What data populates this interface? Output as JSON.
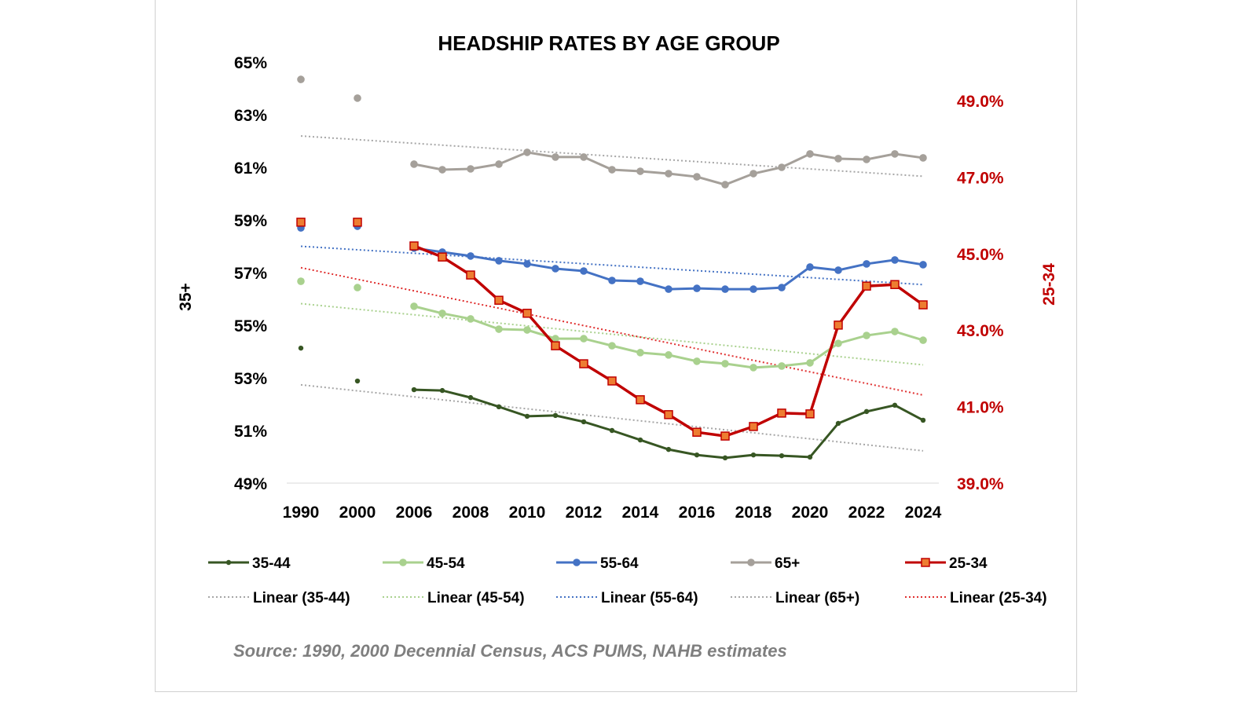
{
  "chart_data": {
    "type": "line",
    "title": "HEADSHIP RATES BY AGE GROUP",
    "y_left_label": "35+",
    "y_right_label": "25-34",
    "y_left_ticks": [
      "65%",
      "63%",
      "61%",
      "59%",
      "57%",
      "55%",
      "53%",
      "51%",
      "49%"
    ],
    "y_right_ticks": [
      "49.0%",
      "47.0%",
      "45.0%",
      "43.0%",
      "41.0%",
      "39.0%"
    ],
    "ylim_left": [
      49,
      65
    ],
    "ylim_right": [
      39,
      50
    ],
    "x_tick_labels": [
      "1990",
      "2000",
      "2006",
      "2008",
      "2010",
      "2012",
      "2014",
      "2016",
      "2018",
      "2020",
      "2022",
      "2024"
    ],
    "x": [
      1990,
      2000,
      2006,
      2007,
      2008,
      2009,
      2010,
      2011,
      2012,
      2013,
      2014,
      2015,
      2016,
      2017,
      2018,
      2019,
      2020,
      2021,
      2022,
      2023,
      2024
    ],
    "grid": false,
    "legend_position": "bottom",
    "series": [
      {
        "name": "35-44",
        "axis": "left",
        "color": "#375623",
        "marker": "small-circle",
        "values": [
          54.13,
          52.88,
          52.55,
          52.52,
          52.25,
          51.9,
          51.54,
          51.57,
          51.33,
          51.0,
          50.64,
          50.28,
          50.07,
          49.96,
          50.07,
          50.04,
          49.99,
          51.27,
          51.72,
          51.96,
          51.39
        ]
      },
      {
        "name": "45-54",
        "axis": "left",
        "color": "#a9d18e",
        "marker": "circle",
        "values": [
          56.67,
          56.43,
          55.72,
          55.45,
          55.24,
          54.85,
          54.82,
          54.49,
          54.49,
          54.22,
          53.96,
          53.87,
          53.63,
          53.54,
          53.39,
          53.45,
          53.57,
          54.31,
          54.61,
          54.76,
          54.43
        ]
      },
      {
        "name": "55-64",
        "axis": "left",
        "color": "#4472c4",
        "marker": "circle",
        "values": [
          58.7,
          58.76,
          57.93,
          57.78,
          57.63,
          57.45,
          57.33,
          57.15,
          57.06,
          56.7,
          56.67,
          56.37,
          56.4,
          56.37,
          56.37,
          56.43,
          57.21,
          57.09,
          57.33,
          57.48,
          57.3
        ]
      },
      {
        "name": "65+",
        "axis": "left",
        "color": "#a5a09a",
        "marker": "circle",
        "values": [
          64.34,
          63.63,
          61.12,
          60.91,
          60.94,
          61.12,
          61.57,
          61.39,
          61.39,
          60.91,
          60.85,
          60.76,
          60.64,
          60.34,
          60.76,
          61.0,
          61.51,
          61.33,
          61.3,
          61.51,
          61.36
        ]
      },
      {
        "name": "25-34",
        "axis": "right",
        "color": "#c00000",
        "marker": "square",
        "marker_fill": "#ed7d31",
        "values": [
          45.82,
          45.82,
          45.2,
          44.91,
          44.44,
          43.78,
          43.44,
          42.59,
          42.12,
          41.67,
          41.18,
          40.79,
          40.33,
          40.23,
          40.48,
          40.83,
          40.81,
          43.13,
          44.15,
          44.19,
          43.66
        ]
      }
    ],
    "trendlines": [
      {
        "name": "Linear (35-44)",
        "of": "35-44",
        "color": "#a6a6a6"
      },
      {
        "name": "Linear (45-54)",
        "of": "45-54",
        "color": "#a9d18e"
      },
      {
        "name": "Linear (55-64)",
        "of": "55-64",
        "color": "#4472c4"
      },
      {
        "name": "Linear (65+)",
        "of": "65+",
        "color": "#a6a6a6"
      },
      {
        "name": "Linear (25-34)",
        "of": "25-34",
        "color": "#e03030"
      }
    ],
    "source": "Source: 1990, 2000 Decennial Census, ACS PUMS, NAHB estimates"
  }
}
